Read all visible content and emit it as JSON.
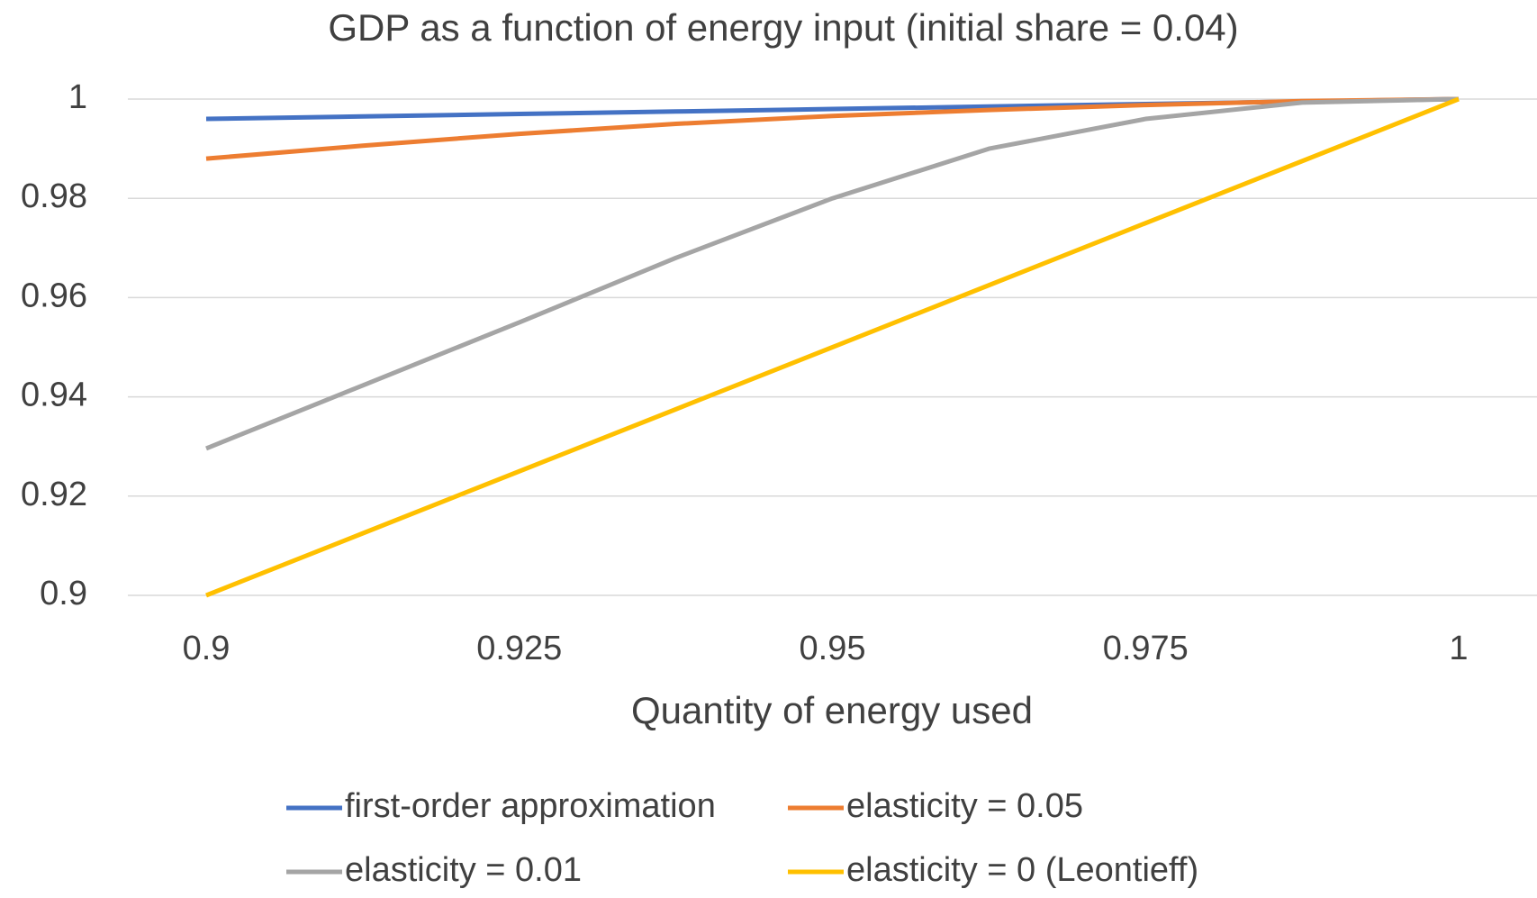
{
  "chart_data": {
    "type": "line",
    "title": "GDP as a function of energy input (initial share = 0.04)",
    "x_label": "Quantity of energy used",
    "x": [
      0.9,
      0.9125,
      0.925,
      0.9375,
      0.95,
      0.9625,
      0.975,
      0.9875,
      1
    ],
    "series": [
      {
        "name": "first-order approximation",
        "color": "#4472c4",
        "values": [
          0.996,
          0.9965,
          0.997,
          0.9975,
          0.998,
          0.9985,
          0.999,
          0.9995,
          1
        ]
      },
      {
        "name": "elasticity = 0.05",
        "color": "#ed7d31",
        "values": [
          0.988,
          0.9906,
          0.993,
          0.995,
          0.9966,
          0.9978,
          0.9988,
          0.9996,
          1
        ]
      },
      {
        "name": "elasticity = 0.01",
        "color": "#a5a5a5",
        "values": [
          0.9296,
          0.9423,
          0.955,
          0.968,
          0.98,
          0.99,
          0.996,
          0.9993,
          1
        ]
      },
      {
        "name": "elasticity = 0 (Leontieff)",
        "color": "#ffc000",
        "values": [
          0.9,
          0.9125,
          0.925,
          0.9375,
          0.95,
          0.9625,
          0.975,
          0.9875,
          1
        ]
      }
    ],
    "xlim": [
      0.9,
      1
    ],
    "xticks": [
      0.9,
      0.925,
      0.95,
      0.975,
      1
    ],
    "ylim": [
      0.9,
      1
    ],
    "yticks": [
      0.9,
      0.92,
      0.94,
      0.96,
      0.98,
      1
    ],
    "grid": true,
    "legend": "bottom"
  }
}
